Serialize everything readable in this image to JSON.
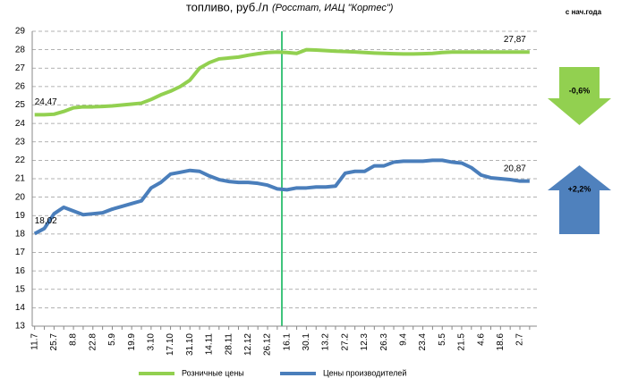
{
  "chart_data": {
    "type": "line",
    "title": "топливо, руб./л",
    "subtitle": "(Росстат, ИАЦ \"Кортес\")",
    "categories": [
      "11.7",
      null,
      "25.7",
      null,
      "8.8",
      null,
      "22.8",
      null,
      "5.9",
      null,
      "19.9",
      null,
      "3.10",
      null,
      "17.10",
      null,
      "31.10",
      null,
      "14.11",
      null,
      "28.11",
      null,
      "12.12",
      null,
      "26.12",
      null,
      "16.1",
      null,
      "30.1",
      null,
      "13.2",
      null,
      "27.2",
      null,
      "12.3",
      null,
      "26.3",
      null,
      "9.4",
      null,
      "23.4",
      null,
      "5.5",
      null,
      "21.5",
      null,
      "4.6",
      null,
      "18.6",
      null,
      "2.7",
      null
    ],
    "series": [
      {
        "name": "Розничные цены",
        "color": "#92d050",
        "values": [
          24.47,
          24.47,
          24.5,
          24.65,
          24.85,
          24.9,
          24.9,
          24.92,
          24.95,
          25.0,
          25.05,
          25.1,
          25.3,
          25.55,
          25.75,
          26.0,
          26.35,
          27.0,
          27.3,
          27.5,
          27.55,
          27.6,
          27.7,
          27.78,
          27.85,
          27.87,
          27.85,
          27.8,
          28.0,
          27.98,
          27.95,
          27.92,
          27.9,
          27.88,
          27.85,
          27.82,
          27.8,
          27.78,
          27.77,
          27.77,
          27.78,
          27.8,
          27.85,
          27.87,
          27.87,
          27.87,
          27.87,
          27.87,
          27.87,
          27.87,
          27.87,
          27.87
        ],
        "value_labels": [
          "24,47",
          null,
          null,
          null,
          null,
          null,
          null,
          null,
          null,
          null,
          null,
          null,
          null,
          null,
          null,
          null,
          null,
          null,
          null,
          null,
          null,
          null,
          null,
          null,
          null,
          null,
          null,
          null,
          null,
          null,
          null,
          null,
          null,
          null,
          null,
          null,
          null,
          null,
          null,
          null,
          null,
          null,
          null,
          null,
          null,
          null,
          null,
          null,
          null,
          null,
          null,
          "27,87"
        ]
      },
      {
        "name": "Цены производителей",
        "color": "#4a7ebb",
        "values": [
          18.02,
          18.3,
          19.1,
          19.45,
          19.25,
          19.05,
          19.1,
          19.15,
          19.35,
          19.5,
          19.65,
          19.8,
          20.5,
          20.8,
          21.25,
          21.35,
          21.45,
          21.4,
          21.15,
          20.95,
          20.85,
          20.8,
          20.8,
          20.75,
          20.65,
          20.45,
          20.4,
          20.5,
          20.5,
          20.55,
          20.55,
          20.6,
          21.3,
          21.4,
          21.4,
          21.7,
          21.7,
          21.9,
          21.95,
          21.95,
          21.95,
          22.0,
          22.0,
          21.9,
          21.85,
          21.6,
          21.2,
          21.05,
          21.0,
          20.95,
          20.87,
          20.87
        ],
        "value_labels": [
          "18,02",
          null,
          null,
          null,
          null,
          null,
          null,
          null,
          null,
          null,
          null,
          null,
          null,
          null,
          null,
          null,
          null,
          null,
          null,
          null,
          null,
          null,
          null,
          null,
          null,
          null,
          null,
          null,
          null,
          null,
          null,
          null,
          null,
          null,
          null,
          null,
          null,
          null,
          null,
          null,
          null,
          null,
          null,
          null,
          null,
          null,
          null,
          null,
          null,
          null,
          null,
          "20,87"
        ]
      }
    ],
    "ylim": [
      13,
      29
    ],
    "yticks": [
      13,
      14,
      15,
      16,
      17,
      18,
      19,
      20,
      21,
      22,
      23,
      24,
      25,
      26,
      27,
      28,
      29
    ],
    "grid": true,
    "legend": "bottom",
    "period_label": "с нач.года",
    "changes": [
      {
        "label": "-0,6%",
        "color": "#92d050",
        "direction": "down"
      },
      {
        "label": "+2,2%",
        "color": "#4f81bd",
        "direction": "up"
      }
    ]
  }
}
